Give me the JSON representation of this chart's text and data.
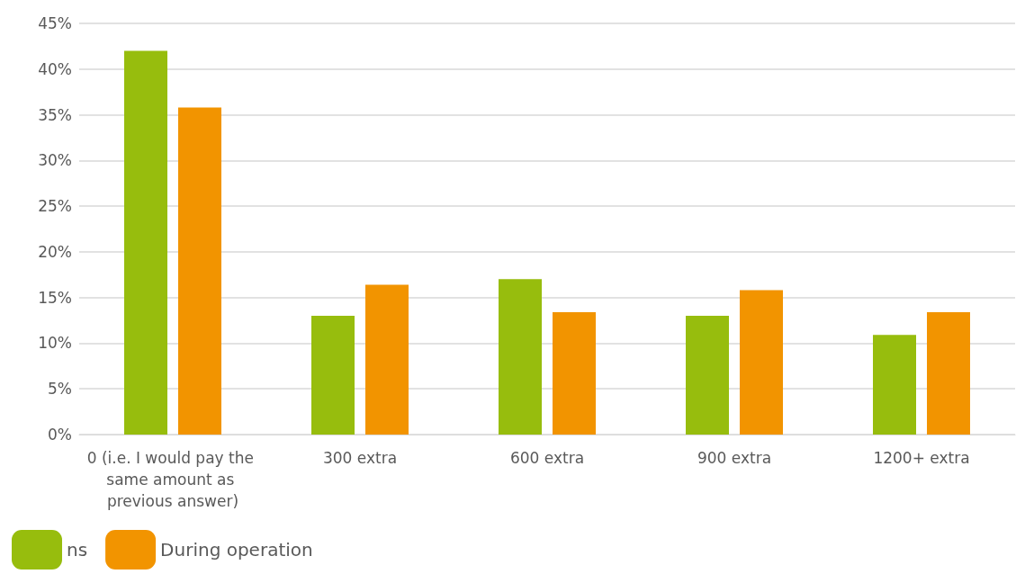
{
  "chart_data": {
    "type": "bar",
    "categories": [
      "0 (i.e. I would pay the same amount as previous answer)",
      "300 extra",
      "600 extra",
      "900 extra",
      "1200+ extra"
    ],
    "series": [
      {
        "name": "ns",
        "color": "#97bd0d",
        "values": [
          42,
          13,
          17,
          13,
          10.9
        ]
      },
      {
        "name": "During operation",
        "color": "#f29400",
        "values": [
          35.8,
          16.4,
          13.4,
          15.8,
          13.4
        ]
      }
    ],
    "ylim": [
      0,
      45
    ],
    "yticks": [
      {
        "value": 0,
        "label": "0%"
      },
      {
        "value": 5,
        "label": "5%"
      },
      {
        "value": 10,
        "label": "10%"
      },
      {
        "value": 15,
        "label": "15%"
      },
      {
        "value": 20,
        "label": "20%"
      },
      {
        "value": 25,
        "label": "25%"
      },
      {
        "value": 30,
        "label": "30%"
      },
      {
        "value": 35,
        "label": "35%"
      },
      {
        "value": 40,
        "label": "40%"
      },
      {
        "value": 45,
        "label": "45%"
      }
    ],
    "grid": "y",
    "legend": "bottom left"
  }
}
